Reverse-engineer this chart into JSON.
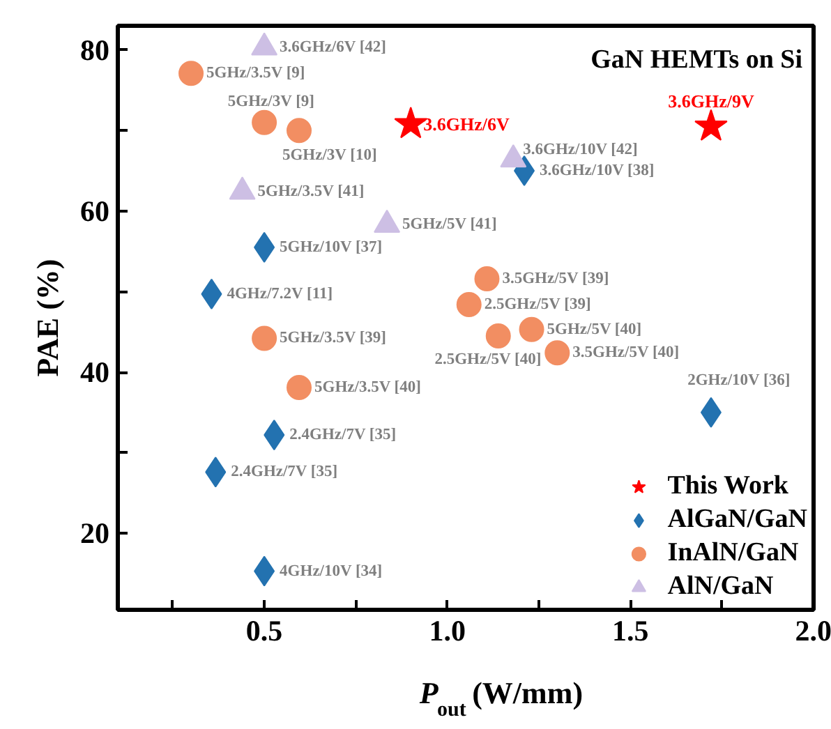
{
  "chart_data": {
    "type": "scatter",
    "title": "GaN HEMTs on Si",
    "xlabel": "P$_{out}$ (W/mm)",
    "ylabel": "PAE (%)",
    "xlim": [
      0.1,
      2.0
    ],
    "ylim": [
      10.5,
      83
    ],
    "xticks": [
      {
        "value": 0.25,
        "label": null
      },
      0.5,
      {
        "value": 0.75,
        "label": null
      },
      {
        "value": 1,
        "label": "1.0"
      },
      {
        "value": 1.25,
        "label": null
      },
      1.5,
      {
        "value": 1.75,
        "label": null
      },
      {
        "value": 2,
        "label": "2.0"
      }
    ],
    "yticks": [
      20,
      {
        "value": 30,
        "label": null
      },
      40,
      {
        "value": 50,
        "label": null
      },
      60,
      {
        "value": 70,
        "label": null
      },
      80
    ],
    "grid": false,
    "legend": "bottom right",
    "series": [
      {
        "name": "This Work",
        "color": "#ff0000",
        "marker": "star",
        "x": [
          0.9,
          1.72
        ],
        "values": [
          70.8,
          70.5
        ],
        "value_labels": [
          "3.6GHz/6V",
          "3.6GHz/9V"
        ]
      },
      {
        "name": "AlGaN/GaN",
        "color": "#2372b0",
        "marker": "diamond",
        "x": [
          1.21,
          0.5,
          0.356,
          0.527,
          0.367,
          0.5,
          1.72
        ],
        "values": [
          65.0,
          55.5,
          49.7,
          32.2,
          27.6,
          15.3,
          35.0
        ],
        "value_labels": [
          "3.6GHz/10V [38]",
          "5GHz/10V [37]",
          "4GHz/7.2V [11]",
          "2.4GHz/7V [35]",
          "2.4GHz/7V [35]",
          "4GHz/10V [34]",
          "2GHz/10V [36]"
        ]
      },
      {
        "name": "InAlN/GaN",
        "color": "#f28e62",
        "marker": "circle",
        "x": [
          0.3,
          0.5,
          0.595,
          1.108,
          1.059,
          1.139,
          1.23,
          1.3,
          0.5,
          0.595
        ],
        "values": [
          77.1,
          71.0,
          70.0,
          51.6,
          48.4,
          44.5,
          45.3,
          42.4,
          44.2,
          38.1
        ],
        "value_labels": [
          "5GHz/3.5V [9]",
          "5GHz/3V [9]",
          "5GHz/3V [10]",
          "3.5GHz/5V [39]",
          "2.5GHz/5V [39]",
          "2.5GHz/5V [40]",
          "5GHz/5V  [40]",
          "3.5GHz/5V [40]",
          "5GHz/3.5V [39]",
          "5GHz/3.5V [40]"
        ]
      },
      {
        "name": "AlN/GaN",
        "color": "#cdbfe4",
        "marker": "triangle",
        "x": [
          0.5,
          0.44,
          0.835,
          1.18
        ],
        "values": [
          80.3,
          62.4,
          58.3,
          66.4
        ],
        "value_labels": [
          "3.6GHz/6V [42]",
          "5GHz/3.5V [41]",
          "5GHz/5V [41]",
          "3.6GHz/10V [42]"
        ]
      }
    ]
  }
}
